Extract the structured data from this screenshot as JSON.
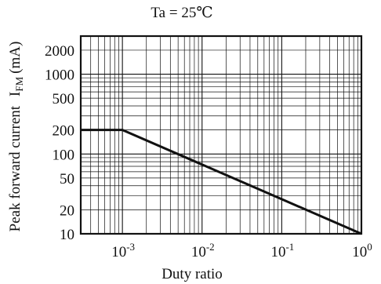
{
  "chart_data": {
    "type": "line",
    "title": "Ta = 25℃",
    "xlabel": "Duty ratio",
    "ylabel": "Peak forward current",
    "ylabel_symbol": "I",
    "ylabel_subscript": "FM",
    "ylabel_unit": "(mA)",
    "x_scale": "log",
    "y_scale": "log",
    "xlim": [
      0.0003,
      1
    ],
    "ylim": [
      10,
      3000
    ],
    "grid": true,
    "legend": "none",
    "x_ticks": [
      {
        "value": 0.001,
        "base": "10",
        "exp": "-3"
      },
      {
        "value": 0.01,
        "base": "10",
        "exp": "-2"
      },
      {
        "value": 0.1,
        "base": "10",
        "exp": "-1"
      },
      {
        "value": 1,
        "base": "10",
        "exp": "0"
      }
    ],
    "y_ticks": [
      {
        "value": 10,
        "label": "10"
      },
      {
        "value": 20,
        "label": "20"
      },
      {
        "value": 50,
        "label": "50"
      },
      {
        "value": 100,
        "label": "100"
      },
      {
        "value": 200,
        "label": "200"
      },
      {
        "value": 500,
        "label": "500"
      },
      {
        "value": 1000,
        "label": "1000"
      },
      {
        "value": 2000,
        "label": "2000"
      }
    ],
    "series": [
      {
        "color": "#111111",
        "x": [
          0.0003,
          0.001,
          1
        ],
        "y": [
          200,
          200,
          10
        ]
      }
    ]
  }
}
